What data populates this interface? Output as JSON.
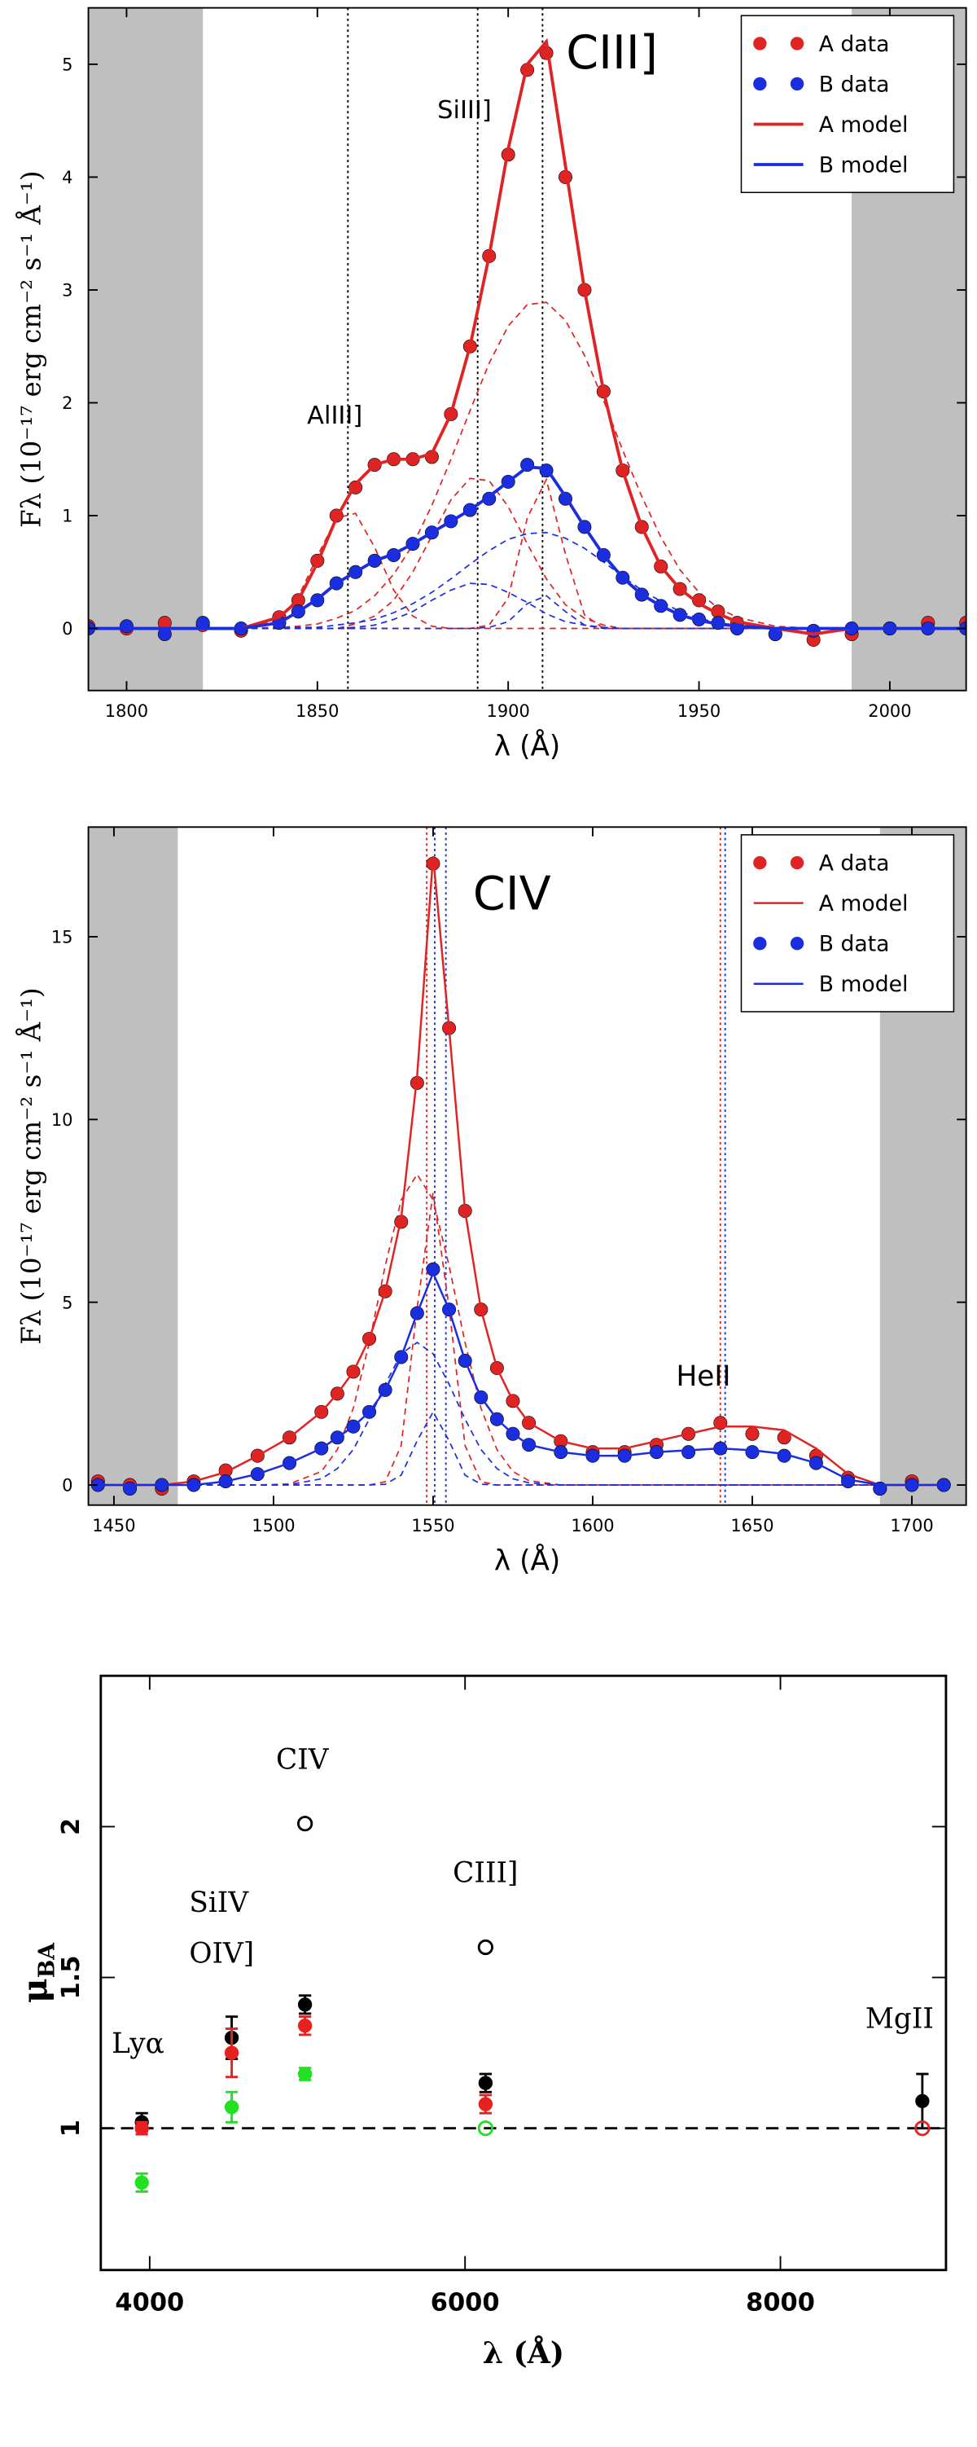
{
  "chart_data": [
    {
      "type": "line",
      "xlabel": "λ (Å)",
      "ylabel": "Fλ (10⁻¹⁷ erg cm⁻² s⁻¹ Å⁻¹)",
      "xlim": [
        1790,
        2020
      ],
      "ylim": [
        -0.55,
        5.5
      ],
      "xticks": [
        1800,
        1850,
        1900,
        1950,
        2000
      ],
      "yticks": [
        0,
        1,
        2,
        3,
        4,
        5
      ],
      "shaded": [
        [
          1790,
          1820
        ],
        [
          1990,
          2020
        ]
      ],
      "vlines": [
        {
          "x": 1858,
          "color": "#000000"
        },
        {
          "x": 1892,
          "color": "#000000"
        },
        {
          "x": 1909,
          "color": "#000000"
        }
      ],
      "annotations": [
        "CIII]",
        "SiIII]",
        "AlIII]"
      ],
      "legend": "upper right",
      "x": [
        1790,
        1800,
        1810,
        1820,
        1830,
        1840,
        1845,
        1850,
        1855,
        1860,
        1865,
        1870,
        1875,
        1880,
        1885,
        1890,
        1895,
        1900,
        1905,
        1910,
        1915,
        1920,
        1925,
        1930,
        1935,
        1940,
        1945,
        1950,
        1955,
        1960,
        1970,
        1980,
        1990,
        2000,
        2010,
        2020
      ],
      "series": [
        {
          "name": "A data",
          "color": "#e02424",
          "style": "points",
          "values": [
            0.02,
            0.0,
            0.05,
            0.03,
            -0.02,
            0.1,
            0.25,
            0.6,
            1.0,
            1.25,
            1.45,
            1.5,
            1.5,
            1.52,
            1.9,
            2.5,
            3.3,
            4.2,
            4.95,
            5.1,
            4.0,
            3.0,
            2.1,
            1.4,
            0.9,
            0.55,
            0.35,
            0.25,
            0.15,
            0.05,
            -0.05,
            -0.1,
            -0.05,
            0.0,
            0.05,
            0.05
          ]
        },
        {
          "name": "B data",
          "color": "#1a2ee0",
          "style": "points",
          "values": [
            0.0,
            0.02,
            -0.05,
            0.05,
            0.0,
            0.05,
            0.15,
            0.25,
            0.4,
            0.5,
            0.6,
            0.65,
            0.75,
            0.85,
            0.95,
            1.05,
            1.15,
            1.3,
            1.45,
            1.4,
            1.15,
            0.9,
            0.65,
            0.45,
            0.3,
            0.2,
            0.12,
            0.08,
            0.05,
            0.0,
            -0.05,
            -0.02,
            0.0,
            0.0,
            0.0,
            0.0
          ]
        },
        {
          "name": "A model",
          "color": "#e02424",
          "style": "line",
          "values": [
            0,
            0,
            0,
            0,
            0,
            0.1,
            0.25,
            0.58,
            0.98,
            1.28,
            1.45,
            1.5,
            1.5,
            1.55,
            1.9,
            2.5,
            3.3,
            4.25,
            5.0,
            5.2,
            4.1,
            3.0,
            2.1,
            1.4,
            0.9,
            0.55,
            0.35,
            0.22,
            0.13,
            0.06,
            0,
            -0.05,
            0,
            0,
            0,
            0
          ]
        },
        {
          "name": "B model",
          "color": "#1a2ee0",
          "style": "line",
          "values": [
            0,
            0,
            0,
            0,
            0,
            0.05,
            0.15,
            0.26,
            0.4,
            0.5,
            0.6,
            0.66,
            0.75,
            0.85,
            0.95,
            1.05,
            1.17,
            1.3,
            1.43,
            1.42,
            1.17,
            0.9,
            0.65,
            0.45,
            0.3,
            0.2,
            0.12,
            0.07,
            0.04,
            0.02,
            0,
            0,
            0,
            0,
            0,
            0
          ]
        }
      ],
      "components": [
        {
          "color": "#e02424",
          "values": [
            0,
            0,
            0,
            0,
            0,
            0.01,
            0.02,
            0.04,
            0.09,
            0.16,
            0.29,
            0.48,
            0.74,
            1.09,
            1.5,
            1.93,
            2.35,
            2.68,
            2.87,
            2.89,
            2.73,
            2.42,
            2.02,
            1.58,
            1.17,
            0.81,
            0.52,
            0.32,
            0.18,
            0.1,
            0.02,
            0,
            0,
            0,
            0,
            0
          ]
        },
        {
          "color": "#e02424",
          "values": [
            0,
            0,
            0,
            0,
            0,
            0.08,
            0.28,
            0.64,
            0.98,
            1.02,
            0.72,
            0.34,
            0.11,
            0.02,
            0,
            0,
            0,
            0,
            0,
            0,
            0,
            0,
            0,
            0,
            0,
            0,
            0,
            0,
            0,
            0,
            0,
            0,
            0,
            0,
            0,
            0
          ]
        },
        {
          "color": "#e02424",
          "values": [
            0,
            0,
            0,
            0,
            0,
            0,
            0,
            0,
            0,
            0.04,
            0.11,
            0.25,
            0.5,
            0.82,
            1.14,
            1.33,
            1.31,
            1.08,
            0.75,
            0.44,
            0.21,
            0.09,
            0.03,
            0,
            0,
            0,
            0,
            0,
            0,
            0,
            0,
            0,
            0,
            0,
            0,
            0
          ]
        },
        {
          "color": "#e02424",
          "values": [
            0,
            0,
            0,
            0,
            0,
            0,
            0,
            0,
            0,
            0,
            0,
            0,
            0,
            0,
            0,
            0,
            0.03,
            0.27,
            0.98,
            1.32,
            0.66,
            0.12,
            0,
            0,
            0,
            0,
            0,
            0,
            0,
            0,
            0,
            0,
            0,
            0,
            0,
            0
          ]
        },
        {
          "color": "#1a2ee0",
          "values": [
            0,
            0,
            0,
            0,
            0,
            0,
            0.01,
            0.01,
            0.03,
            0.05,
            0.08,
            0.14,
            0.22,
            0.32,
            0.44,
            0.57,
            0.69,
            0.79,
            0.84,
            0.85,
            0.8,
            0.71,
            0.59,
            0.46,
            0.34,
            0.24,
            0.15,
            0.09,
            0.05,
            0.03,
            0.01,
            0,
            0,
            0,
            0,
            0
          ]
        },
        {
          "color": "#1a2ee0",
          "values": [
            0,
            0,
            0,
            0,
            0,
            0,
            0,
            0,
            0,
            0.01,
            0.03,
            0.08,
            0.15,
            0.25,
            0.34,
            0.4,
            0.39,
            0.32,
            0.23,
            0.13,
            0.06,
            0.03,
            0.01,
            0,
            0,
            0,
            0,
            0,
            0,
            0,
            0,
            0,
            0,
            0,
            0,
            0
          ]
        },
        {
          "color": "#1a2ee0",
          "values": [
            0,
            0,
            0,
            0,
            0,
            0,
            0,
            0,
            0,
            0,
            0,
            0,
            0,
            0,
            0,
            0,
            0.01,
            0.06,
            0.22,
            0.29,
            0.15,
            0.03,
            0,
            0,
            0,
            0,
            0,
            0,
            0,
            0,
            0,
            0,
            0,
            0,
            0,
            0
          ]
        }
      ]
    },
    {
      "type": "line",
      "xlabel": "λ (Å)",
      "ylabel": "Fλ (10⁻¹⁷ erg cm⁻² s⁻¹ Å⁻¹)",
      "xlim": [
        1442,
        1717
      ],
      "ylim": [
        -0.55,
        18
      ],
      "xticks": [
        1450,
        1500,
        1550,
        1600,
        1650,
        1700
      ],
      "yticks": [
        0,
        5,
        10,
        15
      ],
      "shaded": [
        [
          1442,
          1470
        ],
        [
          1690,
          1717
        ]
      ],
      "vlines": [
        {
          "x": 1548,
          "color": "#e02424"
        },
        {
          "x": 1550.5,
          "color": "#1a2ee0"
        },
        {
          "x": 1554,
          "color": "#1a2ee0"
        },
        {
          "x": 1640,
          "color": "#e02424"
        },
        {
          "x": 1641.5,
          "color": "#1a2ee0"
        }
      ],
      "annotations": [
        "CIV",
        "HeII"
      ],
      "legend": "upper right",
      "x": [
        1445,
        1455,
        1465,
        1475,
        1485,
        1495,
        1505,
        1515,
        1520,
        1525,
        1530,
        1535,
        1540,
        1545,
        1550,
        1555,
        1560,
        1565,
        1570,
        1575,
        1580,
        1590,
        1600,
        1610,
        1620,
        1630,
        1640,
        1650,
        1660,
        1670,
        1680,
        1690,
        1700,
        1710
      ],
      "series": [
        {
          "name": "A data",
          "color": "#e02424",
          "style": "points",
          "values": [
            0.1,
            0.0,
            -0.1,
            0.1,
            0.4,
            0.8,
            1.3,
            2.0,
            2.5,
            3.1,
            4.0,
            5.3,
            7.2,
            11.0,
            17.0,
            12.5,
            7.5,
            4.8,
            3.2,
            2.3,
            1.7,
            1.2,
            0.9,
            0.9,
            1.1,
            1.4,
            1.7,
            1.4,
            1.3,
            0.8,
            0.2,
            -0.1,
            0.1,
            0.0
          ]
        },
        {
          "name": "A model",
          "color": "#e02424",
          "style": "line",
          "values": [
            0,
            0,
            0,
            0.1,
            0.35,
            0.8,
            1.3,
            2.0,
            2.5,
            3.1,
            4.0,
            5.3,
            7.3,
            11.2,
            17.2,
            12.5,
            7.5,
            4.8,
            3.2,
            2.3,
            1.7,
            1.2,
            1.0,
            1.0,
            1.2,
            1.4,
            1.6,
            1.6,
            1.5,
            1.0,
            0.3,
            0,
            0,
            0
          ]
        },
        {
          "name": "B data",
          "color": "#1a2ee0",
          "style": "points",
          "values": [
            0.0,
            -0.1,
            0.0,
            0.0,
            0.1,
            0.3,
            0.6,
            1.0,
            1.3,
            1.6,
            2.0,
            2.6,
            3.5,
            4.7,
            5.9,
            4.8,
            3.4,
            2.4,
            1.8,
            1.4,
            1.1,
            0.9,
            0.8,
            0.8,
            0.9,
            0.9,
            1.0,
            0.9,
            0.8,
            0.6,
            0.1,
            -0.1,
            0.0,
            0.0
          ]
        },
        {
          "name": "B model",
          "color": "#1a2ee0",
          "style": "line",
          "values": [
            0,
            0,
            0,
            0,
            0.1,
            0.3,
            0.6,
            1.0,
            1.3,
            1.6,
            2.0,
            2.6,
            3.5,
            4.7,
            5.8,
            4.8,
            3.4,
            2.4,
            1.8,
            1.4,
            1.1,
            0.9,
            0.8,
            0.8,
            0.9,
            0.95,
            1.0,
            0.95,
            0.85,
            0.6,
            0.15,
            0,
            0,
            0
          ]
        }
      ],
      "components": [
        {
          "color": "#e02424",
          "values": [
            0,
            0,
            0,
            0,
            0,
            0,
            0.03,
            0.37,
            0.97,
            2.1,
            3.9,
            6.0,
            7.8,
            8.5,
            7.8,
            6.0,
            3.9,
            2.1,
            0.97,
            0.37,
            0.12,
            0,
            0,
            0,
            0,
            0,
            0,
            0,
            0,
            0,
            0,
            0,
            0,
            0
          ]
        },
        {
          "color": "#e02424",
          "values": [
            0,
            0,
            0,
            0,
            0,
            0,
            0,
            0,
            0,
            0,
            0,
            0.09,
            1.08,
            4.85,
            8.0,
            4.85,
            1.08,
            0.09,
            0,
            0,
            0,
            0,
            0,
            0,
            0,
            0,
            0,
            0,
            0,
            0,
            0,
            0,
            0,
            0
          ]
        },
        {
          "color": "#1a2ee0",
          "values": [
            0,
            0,
            0,
            0,
            0,
            0,
            0.01,
            0.17,
            0.45,
            0.97,
            1.8,
            2.76,
            3.59,
            3.9,
            3.59,
            2.76,
            1.8,
            0.97,
            0.45,
            0.17,
            0.06,
            0,
            0,
            0,
            0,
            0,
            0,
            0,
            0,
            0,
            0,
            0,
            0,
            0
          ]
        },
        {
          "color": "#1a2ee0",
          "values": [
            0,
            0,
            0,
            0,
            0,
            0,
            0,
            0,
            0,
            0,
            0,
            0.02,
            0.27,
            1.21,
            2.0,
            1.21,
            0.27,
            0.02,
            0,
            0,
            0,
            0,
            0,
            0,
            0,
            0,
            0,
            0,
            0,
            0,
            0,
            0,
            0,
            0
          ]
        }
      ]
    },
    {
      "type": "scatter",
      "xlabel": "λ (Å)",
      "ylabel": "μ",
      "ylabel_sub": "BA",
      "xlim": [
        3690,
        9050
      ],
      "ylim": [
        0.53,
        2.5
      ],
      "xticks": [
        4000,
        6000,
        8000
      ],
      "yticks": [
        1,
        1.5,
        2
      ],
      "hline": 1,
      "annotations": [
        "Lyα",
        "SiIV",
        "OIV]",
        "CIV",
        "CIII]",
        "MgII"
      ],
      "series": [
        {
          "color": "#000000",
          "filled": true,
          "x": [
            3950,
            4520,
            4985,
            6130,
            8900
          ],
          "values": [
            1.02,
            1.3,
            1.41,
            1.15,
            1.09
          ],
          "errors": [
            0.03,
            0.07,
            0.03,
            0.03,
            0.09
          ]
        },
        {
          "color": "#e82020",
          "filled": true,
          "x": [
            3950,
            4520,
            4985,
            6130
          ],
          "values": [
            1.0,
            1.25,
            1.34,
            1.08
          ],
          "errors": [
            0.02,
            0.08,
            0.03,
            0.03
          ]
        },
        {
          "color": "#22e022",
          "filled": true,
          "x": [
            3950,
            4520,
            4985
          ],
          "values": [
            0.82,
            1.07,
            1.18
          ],
          "errors": [
            0.03,
            0.05,
            0.02
          ]
        },
        {
          "color": "#000000",
          "filled": false,
          "x": [
            4985,
            6130
          ],
          "values": [
            2.01,
            1.6
          ]
        },
        {
          "color": "#22e022",
          "filled": false,
          "x": [
            6130
          ],
          "values": [
            1.0
          ]
        },
        {
          "color": "#e82020",
          "filled": false,
          "x": [
            8900
          ],
          "values": [
            1.0
          ]
        }
      ]
    }
  ]
}
